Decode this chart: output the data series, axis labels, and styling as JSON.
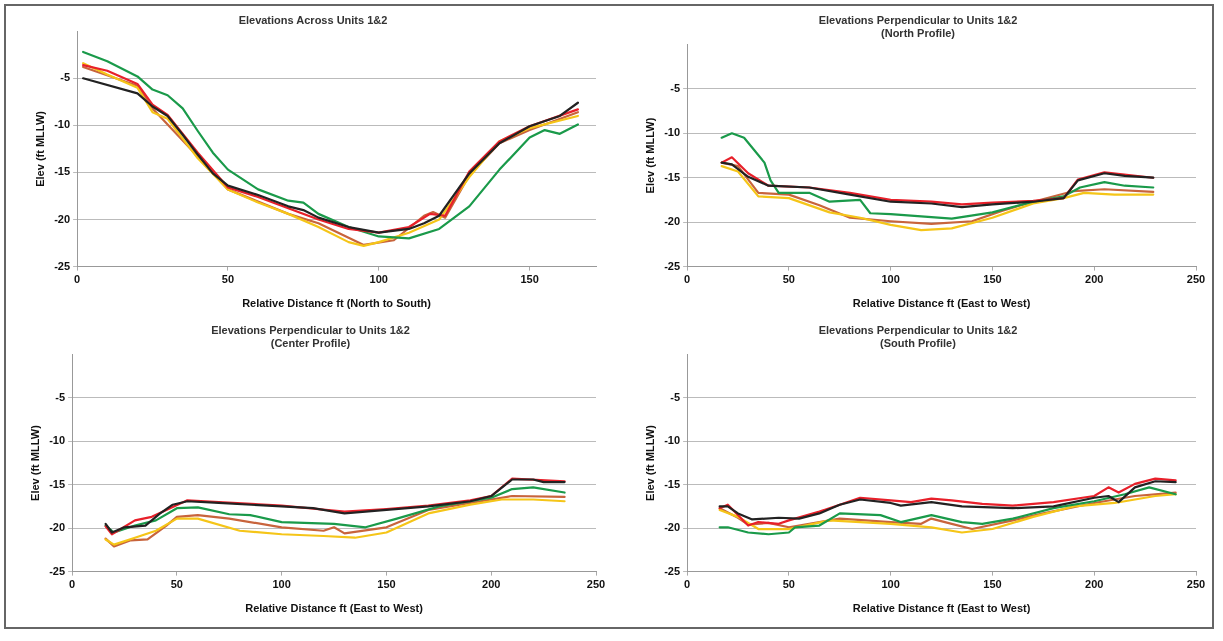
{
  "chart_data": [
    {
      "type": "line",
      "title": "Elevations Across Units 1&2",
      "xlabel": "Relative Distance ft (North to South)",
      "ylabel": "Elev (ft MLLW)",
      "xlim": [
        0,
        172
      ],
      "xticks": [
        0,
        50,
        100,
        150
      ],
      "ylim": [
        -25,
        0
      ],
      "yticks": [
        -25,
        -20,
        -15,
        -10,
        -5
      ],
      "grid": "y",
      "legend": false,
      "marker": "none",
      "line_style": "solid",
      "series": [
        {
          "color": "#222222",
          "x": [
            2,
            20,
            25,
            30,
            35,
            40,
            45,
            50,
            60,
            70,
            75,
            80,
            90,
            100,
            110,
            115,
            120,
            130,
            140,
            150,
            160,
            166
          ],
          "values": [
            -5,
            -6.6,
            -8,
            -9,
            -11,
            -13.1,
            -15.1,
            -16.4,
            -17.4,
            -18.6,
            -19,
            -19.8,
            -20.8,
            -21.4,
            -21,
            -20.4,
            -19.6,
            -15.1,
            -11.9,
            -10.1,
            -9,
            -7.6
          ]
        },
        {
          "color": "#e8202a",
          "x": [
            2,
            10,
            20,
            25,
            30,
            40,
            50,
            60,
            70,
            80,
            90,
            100,
            110,
            117,
            122,
            130,
            140,
            150,
            166
          ],
          "values": [
            -3.6,
            -4.2,
            -5.6,
            -7.8,
            -8.9,
            -12.9,
            -16.6,
            -17.6,
            -18.8,
            -20,
            -21,
            -21.4,
            -20.8,
            -19.4,
            -19.6,
            -14.9,
            -11.7,
            -10.1,
            -8.3
          ]
        },
        {
          "color": "#1a9a4a",
          "x": [
            2,
            10,
            20,
            25,
            30,
            35,
            40,
            45,
            50,
            60,
            70,
            75,
            80,
            90,
            100,
            110,
            120,
            130,
            140,
            150,
            155,
            160,
            166
          ],
          "values": [
            -2.2,
            -3.2,
            -4.8,
            -6.2,
            -6.8,
            -8.2,
            -10.6,
            -12.9,
            -14.7,
            -16.8,
            -18,
            -18.2,
            -19.4,
            -20.8,
            -21.8,
            -22,
            -21,
            -18.6,
            -14.7,
            -11.3,
            -10.5,
            -10.9,
            -9.9
          ]
        },
        {
          "color": "#f5c518",
          "x": [
            2,
            10,
            20,
            25,
            30,
            40,
            50,
            60,
            70,
            80,
            90,
            95,
            100,
            110,
            120,
            130,
            140,
            150,
            166
          ],
          "values": [
            -3.4,
            -4.6,
            -6,
            -8.6,
            -9.3,
            -13.5,
            -16.8,
            -18.2,
            -19.4,
            -20.8,
            -22.4,
            -22.8,
            -22.4,
            -21.4,
            -20,
            -15.5,
            -11.7,
            -10.3,
            -9
          ]
        },
        {
          "color": "#c8643c",
          "x": [
            2,
            20,
            25,
            40,
            50,
            70,
            80,
            95,
            105,
            115,
            118,
            122,
            130,
            140,
            150,
            166
          ],
          "values": [
            -3.8,
            -5.8,
            -8.2,
            -13.3,
            -16.8,
            -19.4,
            -20.4,
            -22.7,
            -22.2,
            -19.6,
            -19.2,
            -19.8,
            -15.3,
            -11.9,
            -10.5,
            -8.6
          ]
        }
      ]
    },
    {
      "type": "line",
      "title": "Elevations Perpendicular to Units 1&2\n(North Profile)",
      "xlabel": "Relative Distance ft (East to West)",
      "ylabel": "Elev (ft MLLW)",
      "xlim": [
        0,
        250
      ],
      "xticks": [
        0,
        50,
        100,
        150,
        200,
        250
      ],
      "ylim": [
        -25,
        0
      ],
      "yticks": [
        -25,
        -20,
        -15,
        -10,
        -5
      ],
      "grid": "y",
      "legend": false,
      "marker": "none",
      "line_style": "solid",
      "series": [
        {
          "color": "#222222",
          "x": [
            17,
            22,
            30,
            40,
            60,
            80,
            100,
            120,
            135,
            150,
            170,
            185,
            192,
            205,
            215,
            229
          ],
          "values": [
            -13.3,
            -13.5,
            -14.9,
            -15.9,
            -16.1,
            -16.9,
            -17.7,
            -17.9,
            -18.3,
            -18,
            -17.7,
            -17.3,
            -15.3,
            -14.5,
            -14.8,
            -15
          ]
        },
        {
          "color": "#e8202a",
          "x": [
            17,
            22,
            30,
            40,
            60,
            80,
            100,
            120,
            135,
            150,
            170,
            185,
            192,
            205,
            229
          ],
          "values": [
            -13.3,
            -12.7,
            -14.5,
            -15.9,
            -16.1,
            -16.7,
            -17.5,
            -17.7,
            -18,
            -17.8,
            -17.6,
            -17.3,
            -15.2,
            -14.4,
            -15
          ]
        },
        {
          "color": "#1a9a4a",
          "x": [
            17,
            22,
            28,
            38,
            41,
            45,
            60,
            70,
            85,
            90,
            100,
            130,
            150,
            170,
            185,
            193,
            205,
            215,
            229
          ],
          "values": [
            -10.5,
            -10,
            -10.5,
            -13.3,
            -15.3,
            -16.7,
            -16.7,
            -17.7,
            -17.5,
            -19,
            -19.1,
            -19.6,
            -18.9,
            -17.7,
            -17.1,
            -16.1,
            -15.5,
            -15.9,
            -16.1
          ]
        },
        {
          "color": "#f5c518",
          "x": [
            17,
            25,
            35,
            50,
            70,
            85,
            100,
            115,
            130,
            150,
            170,
            185,
            195,
            210,
            229
          ],
          "values": [
            -13.7,
            -14.3,
            -17.1,
            -17.3,
            -18.9,
            -19.5,
            -20.3,
            -20.9,
            -20.7,
            -19.5,
            -17.9,
            -17.3,
            -16.7,
            -16.9,
            -16.9
          ]
        },
        {
          "color": "#c8643c",
          "x": [
            17,
            25,
            35,
            50,
            65,
            80,
            100,
            120,
            140,
            155,
            170,
            190,
            205,
            229
          ],
          "values": [
            -13.3,
            -13.7,
            -16.7,
            -16.9,
            -18.1,
            -19.5,
            -19.9,
            -20.2,
            -19.9,
            -18.7,
            -17.7,
            -16.5,
            -16.3,
            -16.6
          ]
        }
      ]
    },
    {
      "type": "line",
      "title": "Elevations Perpendicular to Units 1&2\n(Center Profile)",
      "xlabel": "Relative Distance ft (East to West)",
      "ylabel": "Elev (ft MLLW)",
      "xlim": [
        0,
        250
      ],
      "xticks": [
        0,
        50,
        100,
        150,
        200,
        250
      ],
      "ylim": [
        -25,
        0
      ],
      "yticks": [
        -25,
        -20,
        -15,
        -10,
        -5
      ],
      "grid": "y",
      "legend": false,
      "marker": "none",
      "line_style": "solid",
      "series": [
        {
          "color": "#222222",
          "x": [
            16,
            19,
            25,
            35,
            42,
            48,
            55,
            70,
            100,
            115,
            130,
            150,
            170,
            190,
            200,
            210,
            220,
            225,
            235
          ],
          "values": [
            -19.5,
            -20.5,
            -19.9,
            -19.7,
            -18.3,
            -17.3,
            -16.9,
            -17.1,
            -17.5,
            -17.7,
            -18.3,
            -17.9,
            -17.5,
            -16.9,
            -16.3,
            -14.4,
            -14.4,
            -14.7,
            -14.7
          ]
        },
        {
          "color": "#e8202a",
          "x": [
            16,
            19,
            30,
            38,
            45,
            55,
            70,
            100,
            130,
            150,
            170,
            190,
            200,
            210,
            235
          ],
          "values": [
            -19.8,
            -20.7,
            -19.1,
            -18.7,
            -17.9,
            -16.8,
            -17,
            -17.4,
            -18.1,
            -17.8,
            -17.4,
            -16.8,
            -16.3,
            -14.3,
            -14.6
          ]
        },
        {
          "color": "#1a9a4a",
          "x": [
            16,
            20,
            30,
            40,
            50,
            60,
            75,
            85,
            100,
            125,
            140,
            155,
            175,
            200,
            210,
            220,
            235
          ],
          "values": [
            -19.7,
            -20.5,
            -19.7,
            -19.1,
            -17.7,
            -17.6,
            -18.4,
            -18.5,
            -19.3,
            -19.5,
            -19.9,
            -18.9,
            -17.5,
            -16.5,
            -15.5,
            -15.3,
            -15.9
          ]
        },
        {
          "color": "#f5c518",
          "x": [
            16,
            20,
            30,
            40,
            50,
            60,
            80,
            100,
            120,
            135,
            150,
            170,
            190,
            205,
            220,
            235
          ],
          "values": [
            -21.3,
            -21.9,
            -21.1,
            -20.3,
            -18.9,
            -18.9,
            -20.3,
            -20.7,
            -20.9,
            -21.1,
            -20.5,
            -18.3,
            -17.3,
            -16.7,
            -16.7,
            -16.9
          ]
        },
        {
          "color": "#c8643c",
          "x": [
            16,
            20,
            28,
            36,
            45,
            50,
            60,
            75,
            100,
            120,
            125,
            130,
            150,
            170,
            200,
            210,
            235
          ],
          "values": [
            -21.2,
            -22.1,
            -21.4,
            -21.3,
            -19.7,
            -18.7,
            -18.5,
            -18.9,
            -19.9,
            -20.3,
            -19.9,
            -20.6,
            -19.9,
            -17.9,
            -16.7,
            -16.3,
            -16.4
          ]
        }
      ]
    },
    {
      "type": "line",
      "title": "Elevations Perpendicular to Units 1&2\n(South Profile)",
      "xlabel": "Relative Distance ft (East to West)",
      "ylabel": "Elev (ft MLLW)",
      "xlim": [
        0,
        250
      ],
      "xticks": [
        0,
        50,
        100,
        150,
        200,
        250
      ],
      "ylim": [
        -25,
        0
      ],
      "yticks": [
        -25,
        -20,
        -15,
        -10,
        -5
      ],
      "grid": "y",
      "legend": false,
      "marker": "none",
      "line_style": "solid",
      "series": [
        {
          "color": "#222222",
          "x": [
            16,
            20,
            25,
            32,
            45,
            55,
            65,
            75,
            85,
            100,
            105,
            120,
            135,
            160,
            180,
            200,
            207,
            212,
            220,
            230,
            240
          ],
          "values": [
            -17.5,
            -17.5,
            -18.3,
            -19,
            -18.8,
            -18.9,
            -18.3,
            -17.3,
            -16.7,
            -17.1,
            -17.4,
            -17,
            -17.5,
            -17.7,
            -17.5,
            -16.5,
            -16.3,
            -17,
            -15.3,
            -14.6,
            -14.7
          ]
        },
        {
          "color": "#e8202a",
          "x": [
            16,
            20,
            30,
            35,
            45,
            50,
            65,
            75,
            85,
            100,
            110,
            120,
            130,
            145,
            160,
            180,
            200,
            207,
            212,
            220,
            230,
            240
          ],
          "values": [
            -17.7,
            -17.3,
            -19.7,
            -19.3,
            -19.5,
            -19.1,
            -18.1,
            -17.3,
            -16.5,
            -16.8,
            -17,
            -16.6,
            -16.8,
            -17.2,
            -17.4,
            -17,
            -16.3,
            -15.3,
            -15.9,
            -14.9,
            -14.3,
            -14.5
          ]
        },
        {
          "color": "#1a9a4a",
          "x": [
            16,
            20,
            30,
            40,
            50,
            53,
            65,
            75,
            95,
            105,
            120,
            135,
            145,
            160,
            180,
            200,
            215,
            227,
            240
          ],
          "values": [
            -19.9,
            -19.9,
            -20.5,
            -20.7,
            -20.5,
            -19.9,
            -19.7,
            -18.3,
            -18.5,
            -19.3,
            -18.5,
            -19.3,
            -19.5,
            -18.9,
            -17.7,
            -16.9,
            -16.1,
            -15.3,
            -16.1
          ]
        },
        {
          "color": "#f5c518",
          "x": [
            16,
            25,
            35,
            50,
            70,
            100,
            120,
            135,
            150,
            170,
            190,
            210,
            230,
            240
          ],
          "values": [
            -17.9,
            -18.7,
            -20.1,
            -20.1,
            -19.1,
            -19.5,
            -19.9,
            -20.5,
            -20.1,
            -18.7,
            -17.5,
            -17.1,
            -16.3,
            -16.1
          ]
        },
        {
          "color": "#c8643c",
          "x": [
            16,
            25,
            30,
            40,
            50,
            60,
            75,
            100,
            115,
            120,
            130,
            140,
            160,
            175,
            200,
            220,
            240
          ],
          "values": [
            -17.7,
            -18.8,
            -19.6,
            -19.4,
            -19.9,
            -19.5,
            -18.9,
            -19.3,
            -19.5,
            -18.9,
            -19.5,
            -20.1,
            -19.1,
            -18.3,
            -17.1,
            -16.3,
            -15.9
          ]
        }
      ]
    }
  ]
}
